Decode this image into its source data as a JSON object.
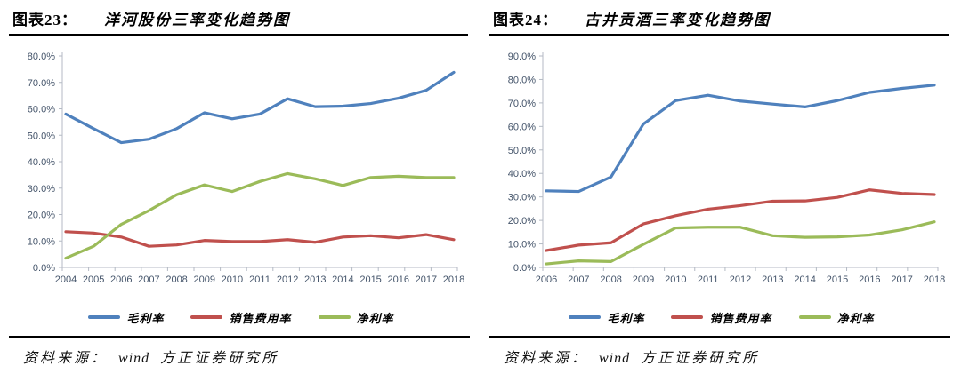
{
  "panels": [
    {
      "header": {
        "tag": "图表23：",
        "title": "洋河股份三率变化趋势图"
      },
      "source": {
        "label": "资料来源：",
        "vendor": "wind",
        "org": "方正证券研究所"
      },
      "chart_data": {
        "type": "line",
        "title": "洋河股份三率变化趋势图",
        "categories": [
          "2004",
          "2005",
          "2006",
          "2007",
          "2008",
          "2009",
          "2010",
          "2011",
          "2012",
          "2013",
          "2014",
          "2015",
          "2016",
          "2017",
          "2018"
        ],
        "series": [
          {
            "name": "毛利率",
            "color": "#4F81BD",
            "values": [
              58.0,
              52.5,
              47.2,
              48.5,
              52.5,
              58.5,
              56.2,
              58.0,
              63.8,
              60.8,
              61.0,
              62.0,
              64.0,
              67.0,
              73.8
            ]
          },
          {
            "name": "销售费用率",
            "color": "#C0504D",
            "values": [
              13.5,
              13.0,
              11.5,
              8.0,
              8.5,
              10.2,
              9.8,
              9.8,
              10.5,
              9.5,
              11.5,
              12.0,
              11.2,
              12.4,
              10.5
            ]
          },
          {
            "name": "净利率",
            "color": "#9BBB59",
            "values": [
              3.5,
              8.0,
              16.3,
              21.5,
              27.5,
              31.2,
              28.7,
              32.5,
              35.5,
              33.5,
              31.0,
              34.0,
              34.5,
              34.0,
              34.0
            ]
          }
        ],
        "ylim": [
          0,
          80
        ],
        "ytick_step": 10,
        "ytick_format": "percent-1dp",
        "grid": false,
        "legend_position": "bottom"
      }
    },
    {
      "header": {
        "tag": "图表24：",
        "title": "古井贡酒三率变化趋势图"
      },
      "source": {
        "label": "资料来源：",
        "vendor": "wind",
        "org": "方正证券研究所"
      },
      "chart_data": {
        "type": "line",
        "title": "古井贡酒三率变化趋势图",
        "categories": [
          "2006",
          "2007",
          "2008",
          "2009",
          "2010",
          "2011",
          "2012",
          "2013",
          "2014",
          "2015",
          "2016",
          "2017",
          "2018"
        ],
        "series": [
          {
            "name": "毛利率",
            "color": "#4F81BD",
            "values": [
              32.6,
              32.3,
              38.5,
              61.0,
              71.0,
              73.3,
              70.8,
              69.5,
              68.3,
              71.0,
              74.5,
              76.2,
              77.6
            ]
          },
          {
            "name": "销售费用率",
            "color": "#C0504D",
            "values": [
              7.2,
              9.5,
              10.5,
              18.5,
              22.0,
              24.8,
              26.3,
              28.2,
              28.3,
              29.8,
              33.0,
              31.5,
              31.0
            ]
          },
          {
            "name": "净利率",
            "color": "#9BBB59",
            "values": [
              1.5,
              2.8,
              2.5,
              9.8,
              16.8,
              17.1,
              17.1,
              13.5,
              12.8,
              13.0,
              13.8,
              16.0,
              19.4
            ]
          }
        ],
        "ylim": [
          0,
          90
        ],
        "ytick_step": 10,
        "ytick_format": "percent-1dp",
        "grid": false,
        "legend_position": "bottom"
      }
    }
  ],
  "colors": {
    "axis": "#b4bac4",
    "tick_label": "#44546A",
    "rule": "#000000"
  }
}
